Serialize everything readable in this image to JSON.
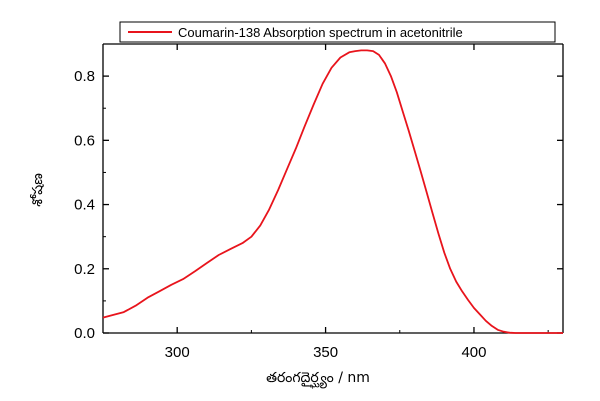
{
  "chart_data": {
    "type": "line",
    "xlabel": "తరంగదైర్ఘ్యం / nm",
    "ylabel": "శోషణ",
    "xlim": [
      275,
      430
    ],
    "ylim": [
      0,
      0.9
    ],
    "x_ticks": [
      300,
      350,
      400
    ],
    "y_ticks": [
      0.0,
      0.2,
      0.4,
      0.6,
      0.8
    ],
    "x_tick_labels": [
      "300",
      "350",
      "400"
    ],
    "y_tick_labels": [
      "0.0",
      "0.2",
      "0.4",
      "0.6",
      "0.8"
    ],
    "legend_position": "top",
    "grid": false,
    "series": [
      {
        "name": "Coumarin-138 Absorption spectrum in acetonitrile",
        "color": "#e8141c",
        "x": [
          275,
          278,
          282,
          286,
          290,
          294,
          298,
          302,
          306,
          310,
          314,
          318,
          322,
          325,
          328,
          331,
          334,
          337,
          340,
          343,
          346,
          349,
          352,
          355,
          358,
          360,
          362,
          364,
          366,
          368,
          370,
          372,
          374,
          376,
          378,
          380,
          382,
          384,
          386,
          388,
          390,
          392,
          394,
          396,
          398,
          400,
          402,
          404,
          406,
          408,
          410,
          412,
          414,
          416,
          418,
          420,
          425,
          430
        ],
        "y": [
          0.048,
          0.055,
          0.065,
          0.085,
          0.11,
          0.13,
          0.15,
          0.168,
          0.192,
          0.218,
          0.243,
          0.262,
          0.28,
          0.3,
          0.335,
          0.385,
          0.445,
          0.51,
          0.575,
          0.645,
          0.712,
          0.776,
          0.826,
          0.858,
          0.874,
          0.878,
          0.88,
          0.88,
          0.878,
          0.866,
          0.84,
          0.8,
          0.75,
          0.69,
          0.63,
          0.568,
          0.505,
          0.44,
          0.375,
          0.31,
          0.25,
          0.2,
          0.16,
          0.13,
          0.103,
          0.078,
          0.058,
          0.038,
          0.022,
          0.01,
          0.004,
          0.001,
          0.0,
          0.0,
          0.0,
          0.0,
          0.0,
          0.0
        ]
      }
    ]
  }
}
